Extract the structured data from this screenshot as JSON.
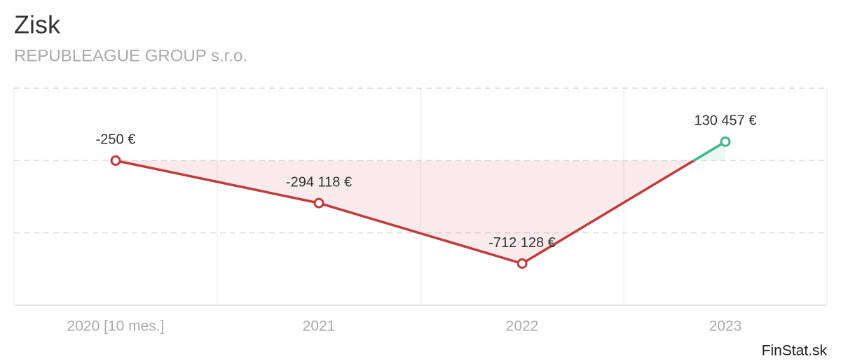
{
  "chart_data": {
    "type": "line",
    "title": "Zisk",
    "subtitle": "REPUBLEAGUE GROUP s.r.o.",
    "categories": [
      "2020 [10 mes.]",
      "2021",
      "2022",
      "2023"
    ],
    "values": [
      -250,
      -294118,
      -712128,
      130457
    ],
    "value_labels": [
      "-250 €",
      "-294 118 €",
      "-712 128 €",
      "130 457 €"
    ],
    "color_negative": "#c23b3b",
    "color_positive": "#3cb98a",
    "ylim": [
      -1000000,
      500000
    ],
    "yticks": [
      -500000,
      0,
      500000
    ],
    "grid": true,
    "watermark": "FinStat.sk"
  }
}
